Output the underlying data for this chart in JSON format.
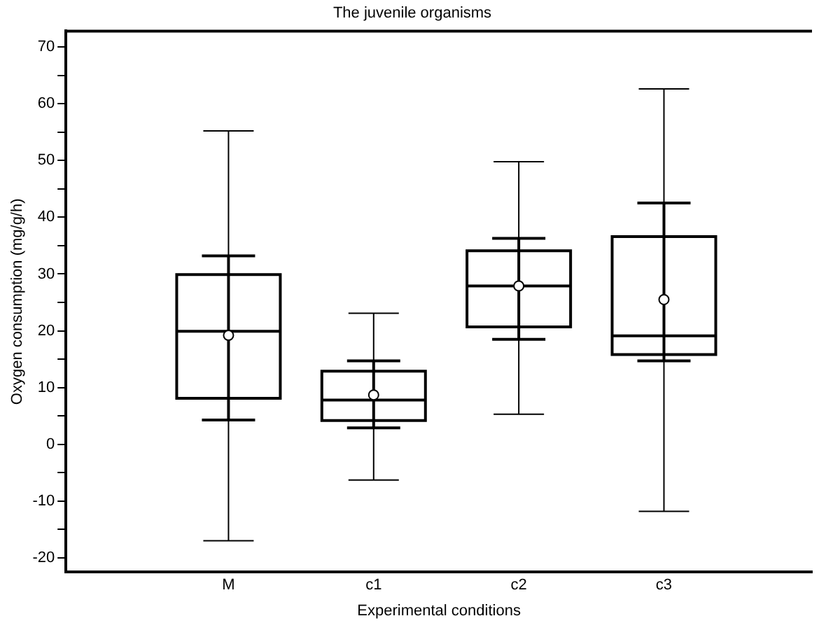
{
  "chart_data": {
    "type": "box",
    "title": "The juvenile organisms",
    "xlabel": "Experimental conditions",
    "ylabel": "Oxygen consumption (mg/g/h)",
    "categories": [
      "M",
      "c1",
      "c2",
      "c3"
    ],
    "color": "#000000",
    "boxes": [
      {
        "low": -17,
        "q1": 8.1,
        "median": 19.9,
        "q3": 29.9,
        "high": 55.2
      },
      {
        "low": -6.3,
        "q1": 4.2,
        "median": 7.8,
        "q3": 12.9,
        "high": 23.1
      },
      {
        "low": 5.3,
        "q1": 20.7,
        "median": 27.9,
        "q3": 34.1,
        "high": 49.8
      },
      {
        "low": -11.8,
        "q1": 15.8,
        "median": 19.1,
        "q3": 36.6,
        "high": 62.6
      }
    ],
    "series": [
      {
        "type": "scatter",
        "color": "#ffffff",
        "x": [
          "M",
          "c1",
          "c2",
          "c3"
        ],
        "values": [
          19.2,
          8.7,
          27.9,
          25.5
        ],
        "errors": [
          [
            4.3,
            33.2
          ],
          [
            2.9,
            14.7
          ],
          [
            18.5,
            36.3
          ],
          [
            14.7,
            42.5
          ]
        ]
      }
    ],
    "marker": "circle",
    "ylim": [
      -22.5,
      72.8
    ],
    "yticks": [
      {
        "value": -20,
        "label": "-20"
      },
      {
        "value": -15,
        "label": null
      },
      {
        "value": -10,
        "label": "-10"
      },
      {
        "value": -5,
        "label": null
      },
      0,
      {
        "value": 5,
        "label": null
      },
      10,
      {
        "value": 15,
        "label": null
      },
      20,
      {
        "value": 25,
        "label": null
      },
      30,
      {
        "value": 35,
        "label": null
      },
      40,
      {
        "value": 45,
        "label": null
      },
      50,
      {
        "value": 55,
        "label": null
      },
      60,
      {
        "value": 65,
        "label": null
      },
      70
    ]
  }
}
